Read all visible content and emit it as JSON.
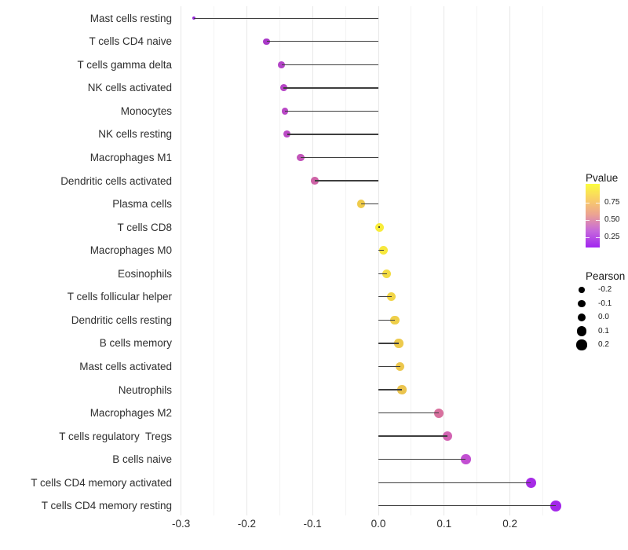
{
  "chart_data": {
    "type": "lollipop",
    "orientation": "horizontal",
    "title": "",
    "xlabel": "",
    "ylabel": "",
    "background": "#ffffff",
    "grid": true,
    "x_axis": {
      "tick_labels": [
        "-0.3",
        "-0.2",
        "-0.1",
        "0.0",
        "0.1",
        "0.2"
      ],
      "tick_values": [
        -0.3,
        -0.2,
        -0.1,
        0.0,
        0.1,
        0.2
      ],
      "minor_tick_values": [
        -0.25,
        -0.15,
        -0.05,
        0.05,
        0.15,
        0.25
      ],
      "range": [
        -0.31,
        0.3
      ]
    },
    "series_encoding": {
      "x": "Pearson correlation",
      "color": "Pvalue",
      "size": "Pearson"
    },
    "points": [
      {
        "label": "Mast cells resting",
        "pearson": -0.28,
        "color": "#9327d8"
      },
      {
        "label": "T cells CD4 naive",
        "pearson": -0.17,
        "color": "#a939c8"
      },
      {
        "label": "T cells gamma delta",
        "pearson": -0.147,
        "color": "#b344c7"
      },
      {
        "label": "NK cells activated",
        "pearson": -0.144,
        "color": "#b746c7"
      },
      {
        "label": "Monocytes",
        "pearson": -0.142,
        "color": "#b948c6"
      },
      {
        "label": "NK cells resting",
        "pearson": -0.139,
        "color": "#bb4ac5"
      },
      {
        "label": "Macrophages M1",
        "pearson": -0.118,
        "color": "#c355ba"
      },
      {
        "label": "Dendritic cells activated",
        "pearson": -0.097,
        "color": "#ce63a7"
      },
      {
        "label": "Plasma cells",
        "pearson": -0.026,
        "color": "#efcb4b"
      },
      {
        "label": "T cells CD8",
        "pearson": 0.002,
        "color": "#f8ec3b"
      },
      {
        "label": "Macrophages M0",
        "pearson": 0.008,
        "color": "#f7e83d"
      },
      {
        "label": "Eosinophils",
        "pearson": 0.013,
        "color": "#f3dc43"
      },
      {
        "label": "T cells follicular helper",
        "pearson": 0.02,
        "color": "#f1d547"
      },
      {
        "label": "Dendritic cells resting",
        "pearson": 0.025,
        "color": "#efcf49"
      },
      {
        "label": "B cells memory",
        "pearson": 0.031,
        "color": "#edca4c"
      },
      {
        "label": "Mast cells activated",
        "pearson": 0.033,
        "color": "#ecc74d"
      },
      {
        "label": "Neutrophils",
        "pearson": 0.036,
        "color": "#ebc44e"
      },
      {
        "label": "Macrophages M2",
        "pearson": 0.092,
        "color": "#d8709e"
      },
      {
        "label": "T cells regulatory  Tregs",
        "pearson": 0.105,
        "color": "#d263b2"
      },
      {
        "label": "B cells naive",
        "pearson": 0.133,
        "color": "#c24fd2"
      },
      {
        "label": "T cells CD4 memory activated",
        "pearson": 0.232,
        "color": "#a62be6"
      },
      {
        "label": "T cells CD4 memory resting",
        "pearson": 0.27,
        "color": "#a327ea"
      }
    ],
    "legends": {
      "pvalue": {
        "title": "Pvalue",
        "tick_labels": [
          "0.75",
          "0.50",
          "0.25"
        ],
        "gradient_top_to_bottom": [
          "#fbfd3f",
          "#f9cf66",
          "#eca392",
          "#c668dc",
          "#a125f0"
        ]
      },
      "pearson": {
        "title": "Pearson",
        "items": [
          {
            "label": "-0.2",
            "value": -0.2
          },
          {
            "label": "-0.1",
            "value": -0.1
          },
          {
            "label": "0.0",
            "value": 0.0
          },
          {
            "label": "0.1",
            "value": 0.1
          },
          {
            "label": "0.2",
            "value": 0.2
          }
        ]
      }
    },
    "stick_color": "#3e3e3e"
  }
}
